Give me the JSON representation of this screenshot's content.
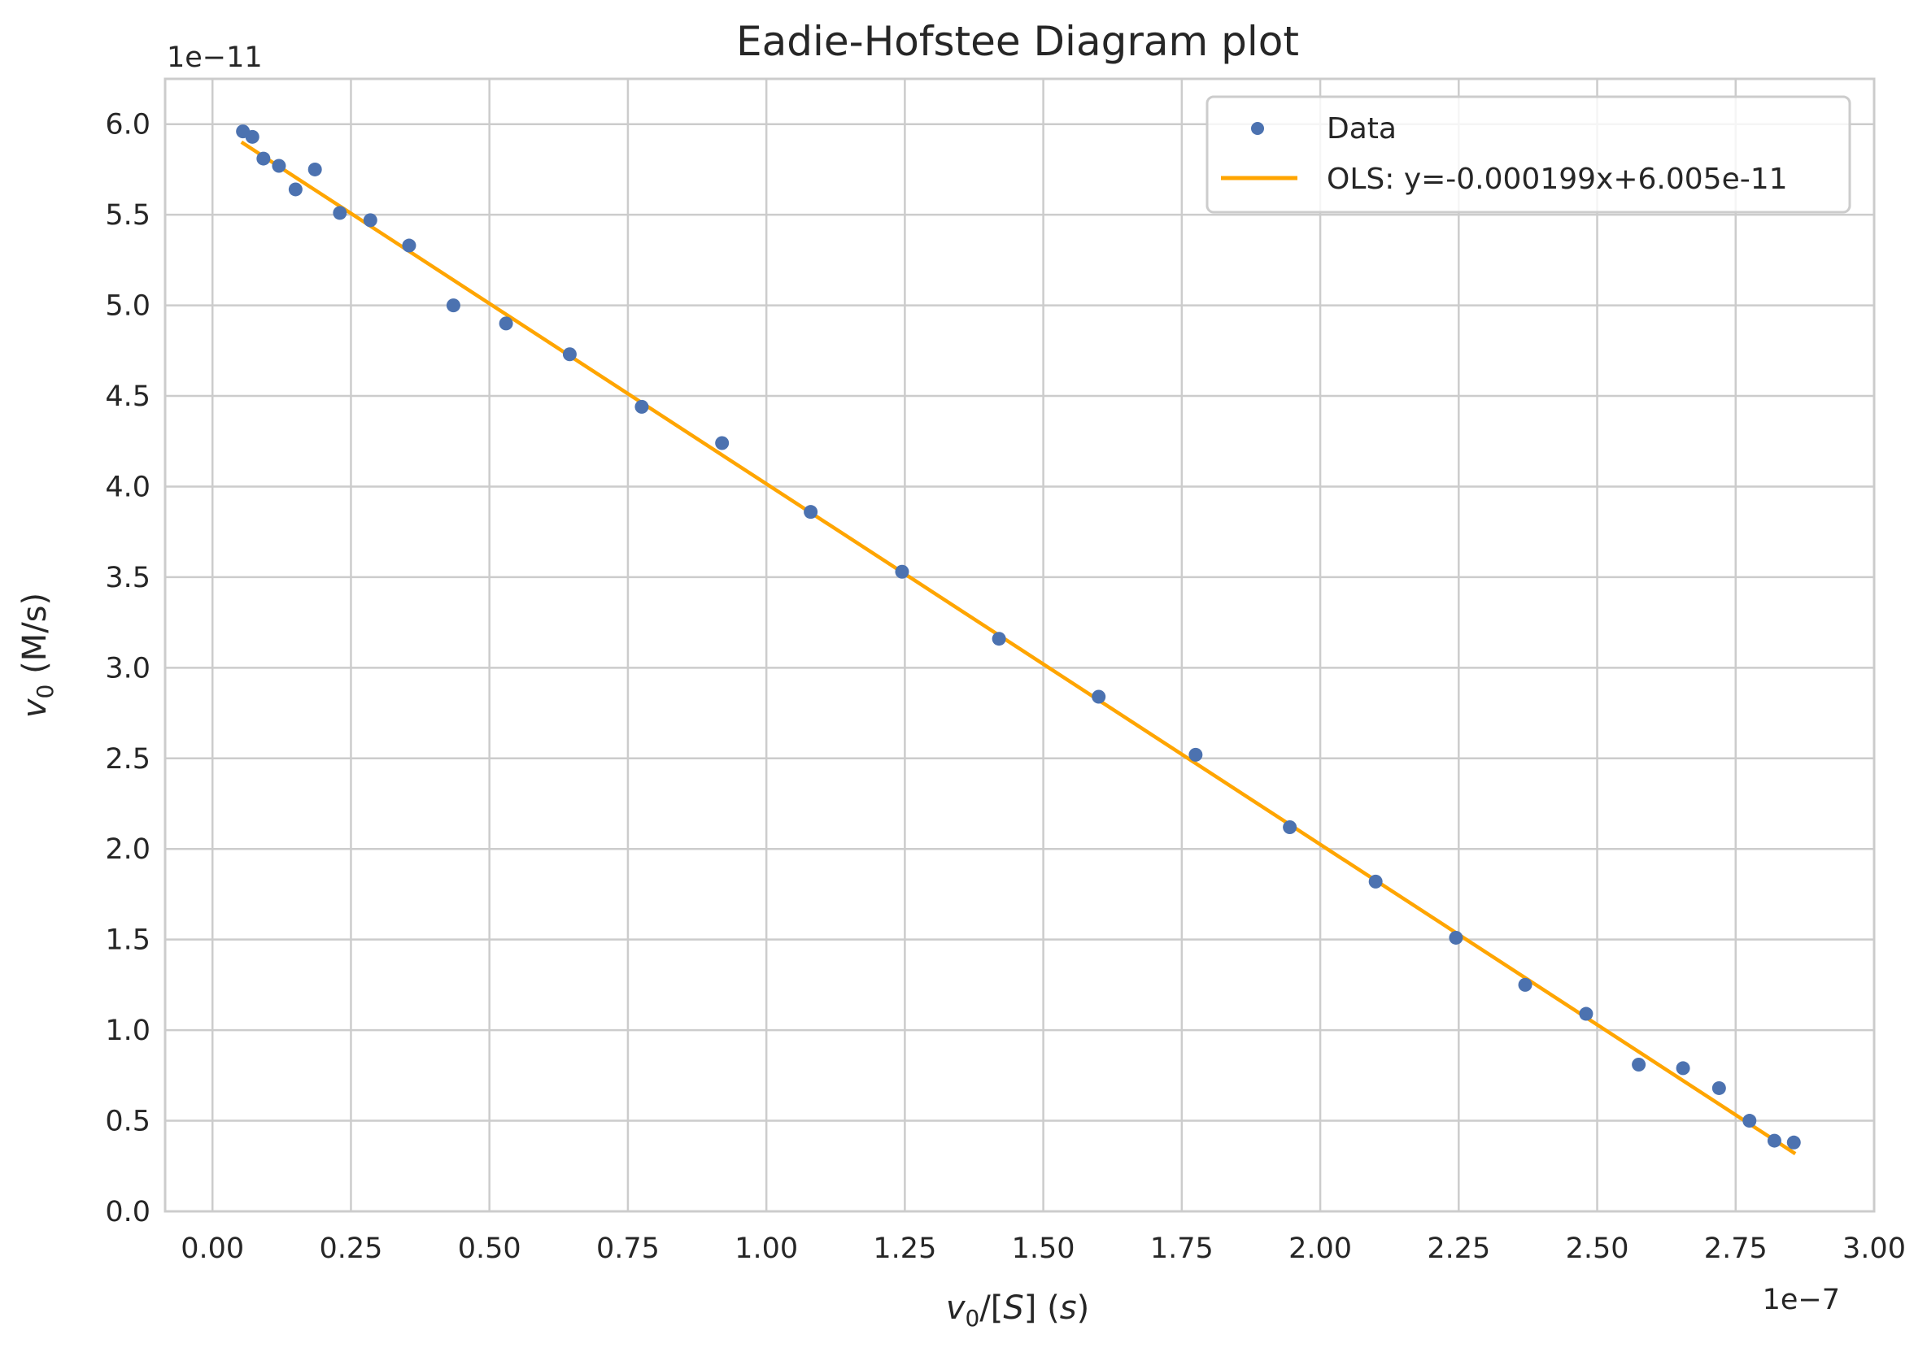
{
  "chart_data": {
    "type": "scatter",
    "title": "Eadie-Hofstee Diagram plot",
    "xlabel": "v0/[S] (s)",
    "ylabel": "v0 (M/s)",
    "x_offset_text": "1e−7",
    "y_offset_text": "1e−11",
    "xlim": [
      -0.0855,
      3.0
    ],
    "ylim": [
      0.0,
      6.25
    ],
    "xticks": [
      0.0,
      0.25,
      0.5,
      0.75,
      1.0,
      1.25,
      1.5,
      1.75,
      2.0,
      2.25,
      2.5,
      2.75,
      3.0
    ],
    "yticks": [
      0.0,
      0.5,
      1.0,
      1.5,
      2.0,
      2.5,
      3.0,
      3.5,
      4.0,
      4.5,
      5.0,
      5.5,
      6.0
    ],
    "xtick_labels": [
      "0.00",
      "0.25",
      "0.50",
      "0.75",
      "1.00",
      "1.25",
      "1.50",
      "1.75",
      "2.00",
      "2.25",
      "2.50",
      "2.75",
      "3.00"
    ],
    "ytick_labels": [
      "0.0",
      "0.5",
      "1.0",
      "1.5",
      "2.0",
      "2.5",
      "3.0",
      "3.5",
      "4.0",
      "4.5",
      "5.0",
      "5.5",
      "6.0"
    ],
    "grid": true,
    "legend_position": "upper right",
    "series": [
      {
        "name": "Data",
        "kind": "scatter",
        "color": "#4c72b0",
        "x": [
          0.055,
          0.072,
          0.092,
          0.12,
          0.15,
          0.185,
          0.23,
          0.285,
          0.355,
          0.435,
          0.53,
          0.645,
          0.775,
          0.92,
          1.08,
          1.245,
          1.42,
          1.6,
          1.775,
          1.945,
          2.1,
          2.245,
          2.37,
          2.48,
          2.575,
          2.655,
          2.72,
          2.775,
          2.82,
          2.855
        ],
        "y": [
          5.96,
          5.93,
          5.81,
          5.77,
          5.64,
          5.75,
          5.51,
          5.47,
          5.33,
          5.0,
          4.9,
          4.73,
          4.44,
          4.24,
          3.86,
          3.53,
          3.16,
          2.84,
          2.52,
          2.12,
          1.82,
          1.51,
          1.25,
          1.09,
          0.81,
          0.79,
          0.68,
          0.5,
          0.39,
          0.38
        ]
      },
      {
        "name": "OLS: y=-0.000199x+6.005e-11",
        "kind": "line",
        "color": "#ffa500",
        "slope": -1.99,
        "intercept": 6.005,
        "x_range": [
          0.055,
          2.855
        ]
      }
    ]
  }
}
